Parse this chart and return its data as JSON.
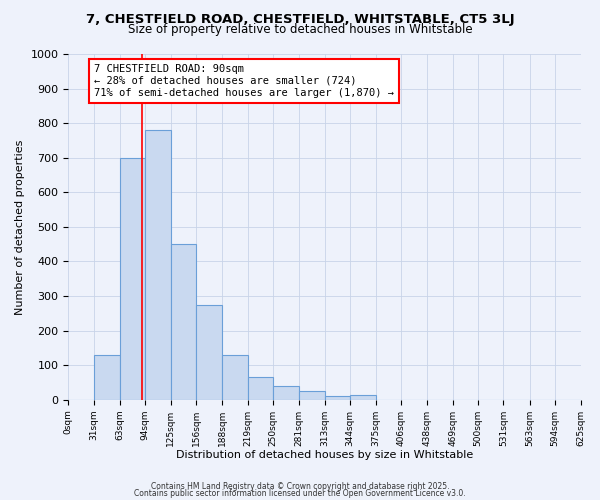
{
  "title": "7, CHESTFIELD ROAD, CHESTFIELD, WHITSTABLE, CT5 3LJ",
  "subtitle": "Size of property relative to detached houses in Whitstable",
  "xlabel": "Distribution of detached houses by size in Whitstable",
  "ylabel": "Number of detached properties",
  "bin_edges": [
    0,
    31,
    63,
    94,
    125,
    156,
    188,
    219,
    250,
    281,
    313,
    344,
    375,
    406,
    438,
    469,
    500,
    531,
    563,
    594,
    625
  ],
  "bin_counts": [
    0,
    130,
    700,
    780,
    450,
    275,
    130,
    65,
    40,
    25,
    10,
    15,
    0,
    0,
    0,
    0,
    0,
    0,
    0,
    0
  ],
  "bar_color": "#c9d9f0",
  "bar_edge_color": "#6a9fd8",
  "bar_edge_width": 0.8,
  "property_line_x": 90,
  "property_line_color": "red",
  "annotation_box_text": "7 CHESTFIELD ROAD: 90sqm\n← 28% of detached houses are smaller (724)\n71% of semi-detached houses are larger (1,870) →",
  "annotation_fontsize": 7.5,
  "ylim": [
    0,
    1000
  ],
  "yticks": [
    0,
    100,
    200,
    300,
    400,
    500,
    600,
    700,
    800,
    900,
    1000
  ],
  "xtick_labels": [
    "0sqm",
    "31sqm",
    "63sqm",
    "94sqm",
    "125sqm",
    "156sqm",
    "188sqm",
    "219sqm",
    "250sqm",
    "281sqm",
    "313sqm",
    "344sqm",
    "375sqm",
    "406sqm",
    "438sqm",
    "469sqm",
    "500sqm",
    "531sqm",
    "563sqm",
    "594sqm",
    "625sqm"
  ],
  "footer_line1": "Contains HM Land Registry data © Crown copyright and database right 2025.",
  "footer_line2": "Contains public sector information licensed under the Open Government Licence v3.0.",
  "grid_color": "#c8d4e8",
  "background_color": "#eef2fb",
  "title_fontsize": 9.5,
  "subtitle_fontsize": 8.5
}
